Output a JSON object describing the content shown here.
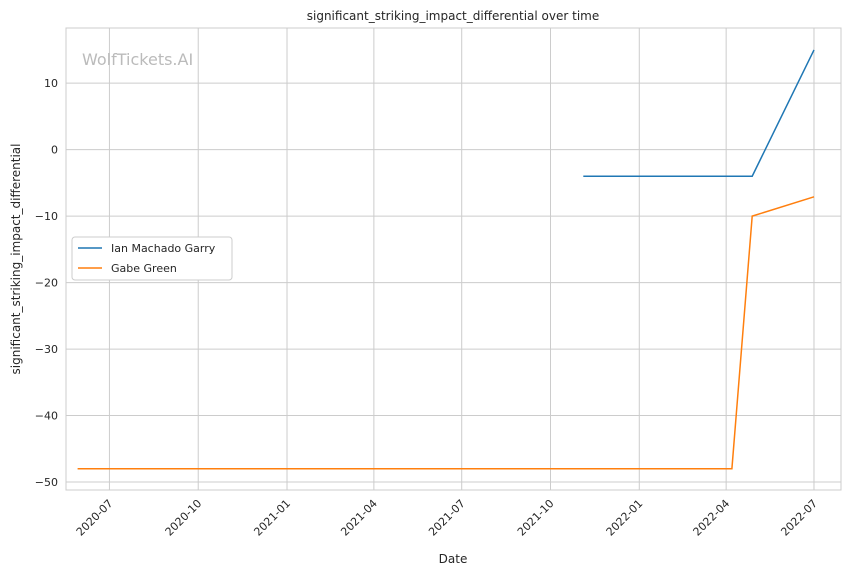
{
  "chart_data": {
    "type": "line",
    "title": "significant_striking_impact_differential over time",
    "xlabel": "Date",
    "ylabel": "significant_striking_impact_differential",
    "watermark": "WolfTickets.AI",
    "xlim": [
      "2020-05-17",
      "2022-07-29"
    ],
    "ylim": [
      -51.2,
      18.3
    ],
    "yticks": [
      10,
      0,
      -10,
      -20,
      -30,
      -40,
      -50
    ],
    "xticks": [
      "2020-07",
      "2020-10",
      "2021-01",
      "2021-04",
      "2021-07",
      "2021-10",
      "2022-01",
      "2022-04",
      "2022-07"
    ],
    "grid": true,
    "legend_position": "center-left",
    "series": [
      {
        "name": "Ian Machado Garry",
        "color": "#1f77b4",
        "x": [
          "2021-11-04",
          "2022-04-28",
          "2022-07-01"
        ],
        "y": [
          -4,
          -4,
          15
        ]
      },
      {
        "name": "Gabe Green",
        "color": "#ff7f0e",
        "x": [
          "2020-05-29",
          "2022-04-07",
          "2022-04-28",
          "2022-07-01"
        ],
        "y": [
          -48,
          -48,
          -10,
          -7.1
        ]
      }
    ]
  }
}
